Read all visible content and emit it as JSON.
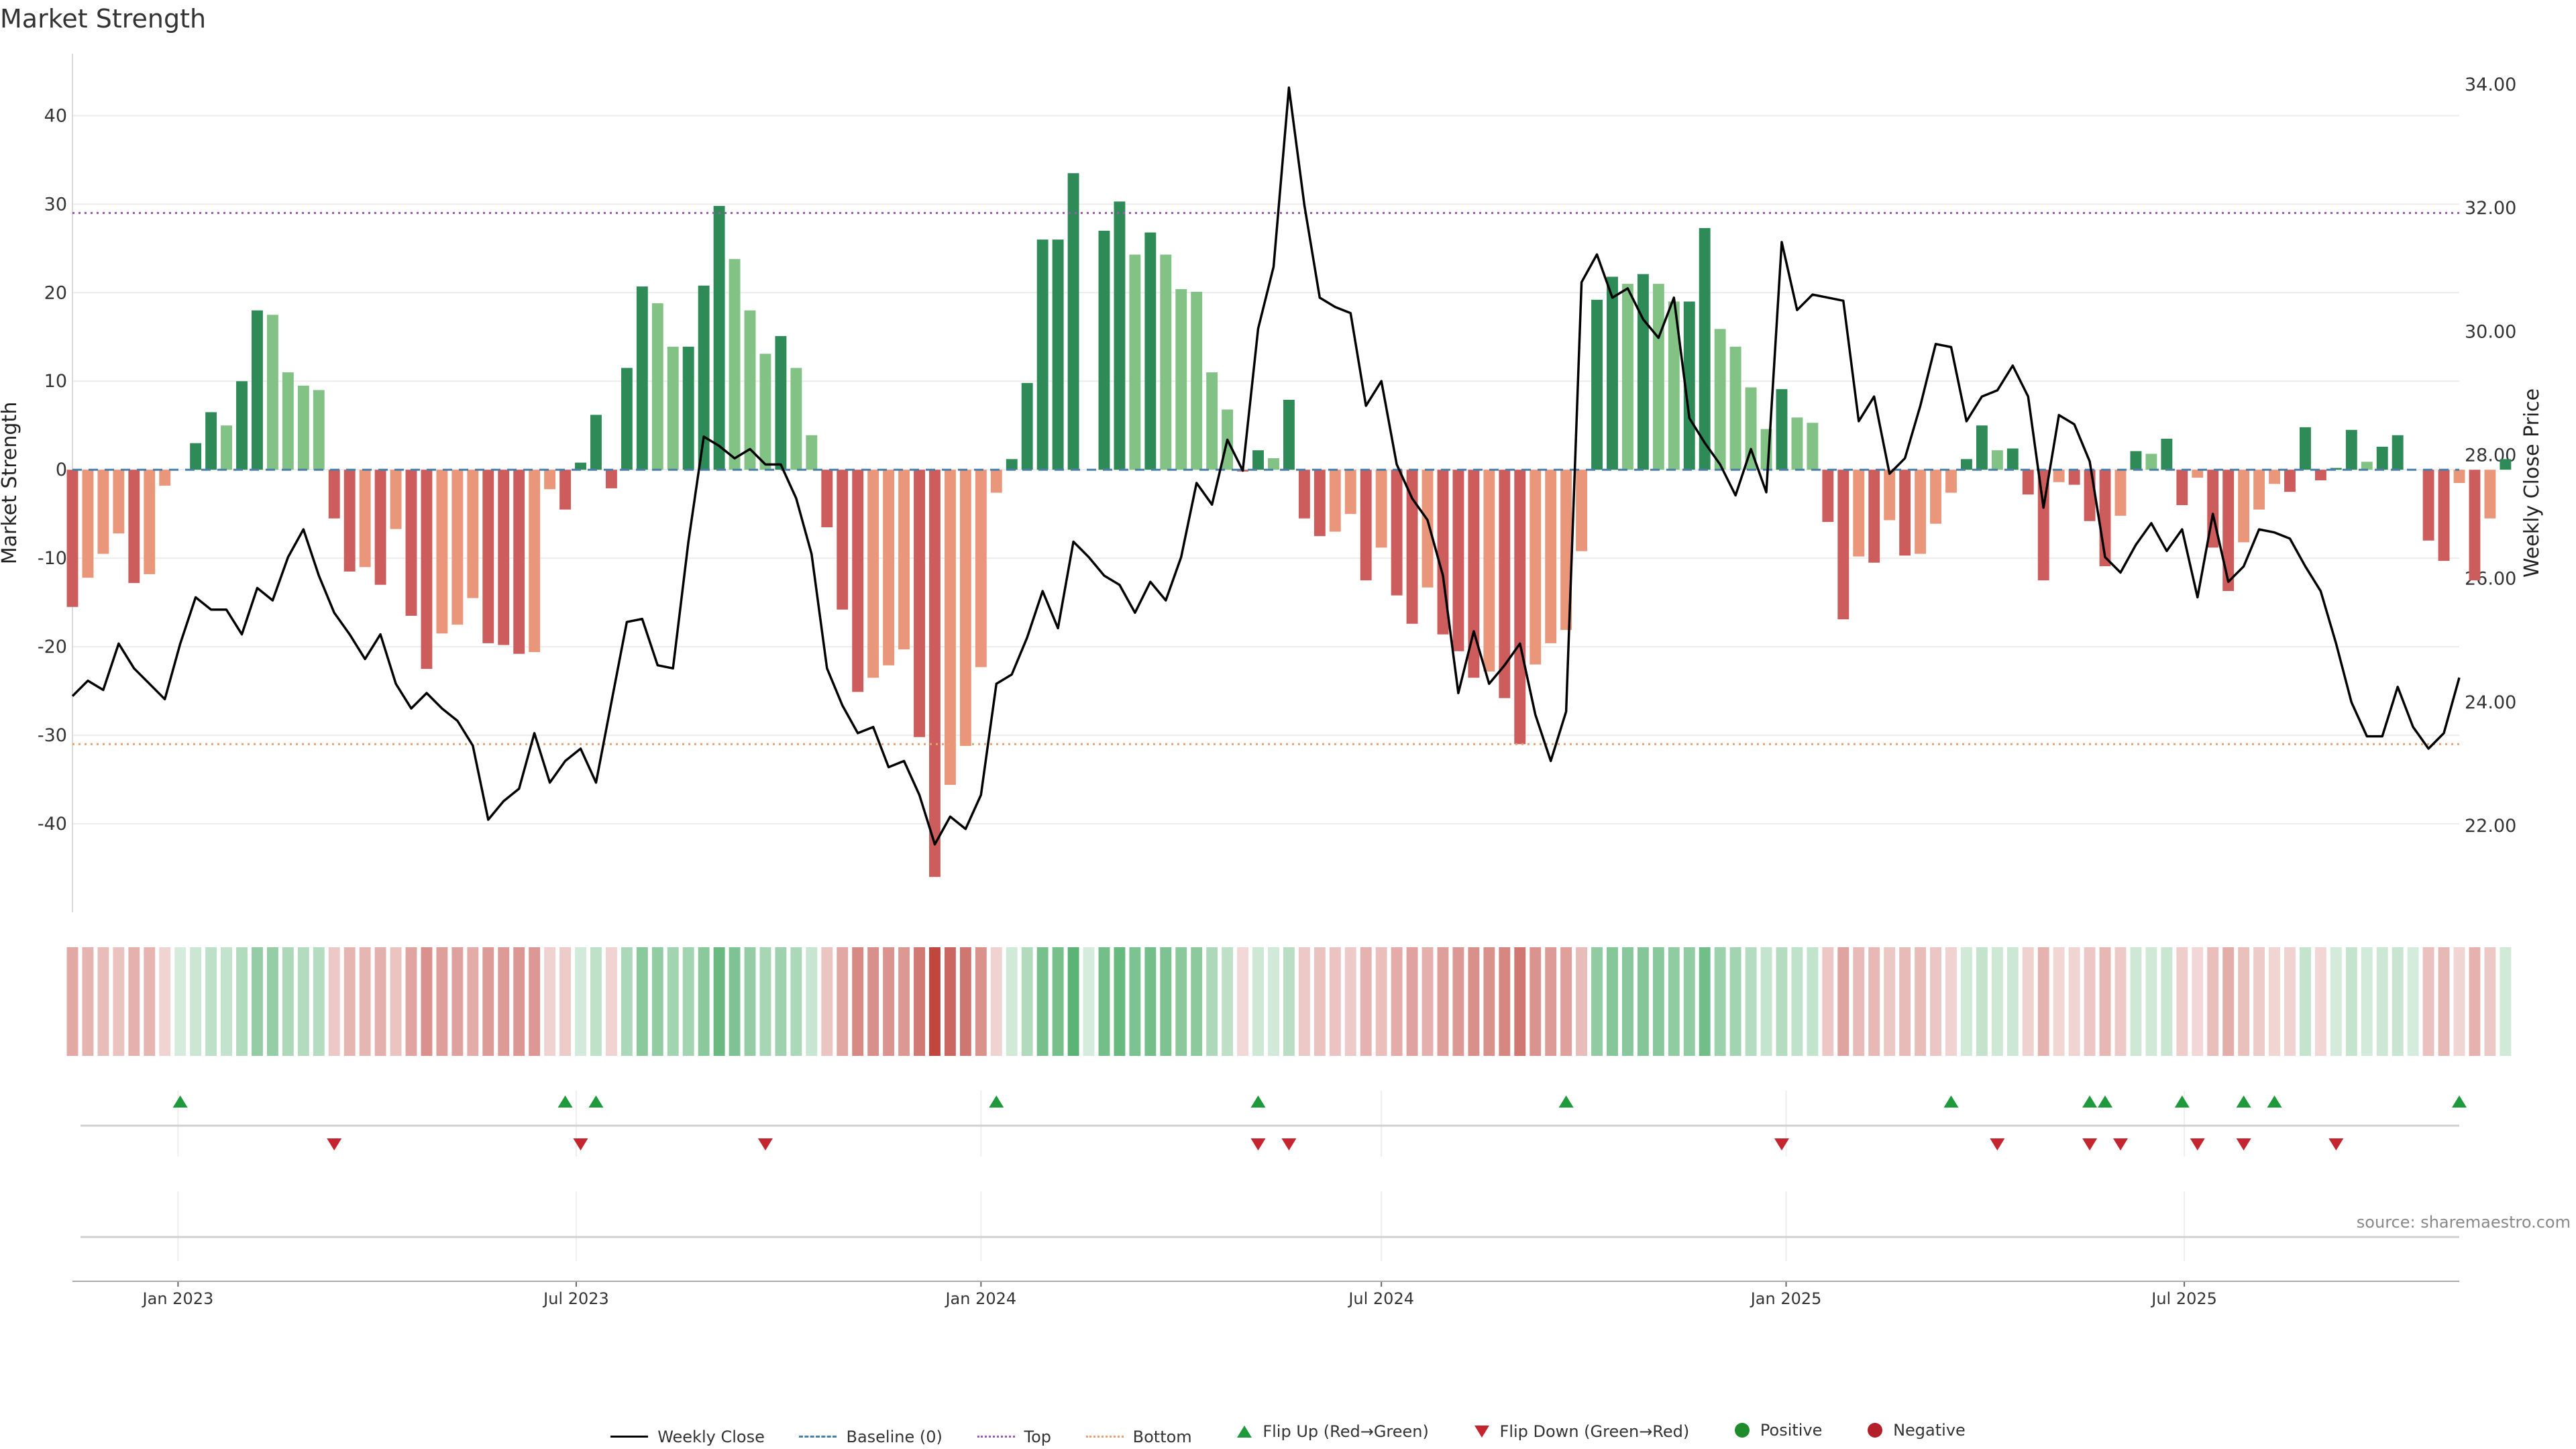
{
  "title": "Market Strength",
  "source_label": "source: sharemaestro.com",
  "legend": {
    "close": "Weekly Close",
    "baseline": "Baseline (0)",
    "top": "Top",
    "bottom": "Bottom",
    "flip_up": "Flip Up (Red→Green)",
    "flip_down": "Flip Down (Green→Red)",
    "positive": "Positive",
    "negative": "Negative"
  },
  "colors": {
    "green_dark": "#2e8b57",
    "green_light": "#82c284",
    "red_dark": "#cd5c5c",
    "red_light": "#e9967a",
    "close_line": "#000000",
    "baseline": "#4a7fa8",
    "top_line": "#9b59b6",
    "bottom_line": "#e8a070",
    "flip_up": "#1e9a3c",
    "flip_down": "#c4252f",
    "positive": "#1e8c2a",
    "negative": "#b3202a"
  },
  "chart_data": {
    "type": "bar",
    "title": "Market Strength",
    "ylabel_left": "Market Strength",
    "ylabel_right": "Weekly Close Price",
    "ylim_left": [
      -50,
      47
    ],
    "ylim_right": [
      20.6,
      34.5
    ],
    "yticks_left": [
      40,
      30,
      20,
      10,
      0,
      -10,
      -20,
      -30,
      -40
    ],
    "yticks_right": [
      34.0,
      32.0,
      30.0,
      28.0,
      26.0,
      24.0,
      22.0
    ],
    "top_level": 29,
    "bottom_level": -31,
    "baseline": 0,
    "x_range": [
      "2022-11-14",
      "2025-11-03"
    ],
    "x_ticks": [
      {
        "date": "2023-01-01",
        "label": "Jan 2023"
      },
      {
        "date": "2023-07-01",
        "label": "Jul 2023"
      },
      {
        "date": "2024-01-01",
        "label": "Jan 2024"
      },
      {
        "date": "2024-07-01",
        "label": "Jul 2024"
      },
      {
        "date": "2025-01-01",
        "label": "Jan 2025"
      },
      {
        "date": "2025-07-01",
        "label": "Jul 2025"
      }
    ],
    "start_date": "2022-11-14",
    "series_strength": [
      -15.5,
      -12.2,
      -9.5,
      -7.2,
      -12.8,
      -11.8,
      -1.8,
      0,
      3,
      6.5,
      5,
      10,
      18,
      17.5,
      11,
      9.5,
      9,
      -5.5,
      -11.5,
      -11,
      -13,
      -6.7,
      -16.5,
      -22.5,
      -18.5,
      -17.5,
      -14.5,
      -19.6,
      -19.8,
      -20.8,
      -20.6,
      -2.2,
      -4.5,
      0.8,
      6.2,
      -2.1,
      11.5,
      20.7,
      18.8,
      13.9,
      13.9,
      20.8,
      29.8,
      23.8,
      18,
      13.1,
      15.1,
      11.5,
      3.9,
      -6.5,
      -15.8,
      -25.1,
      -23.5,
      -22.1,
      -20.3,
      -30.2,
      -46,
      -35.6,
      -31.2,
      -22.3,
      -2.6,
      1.2,
      9.8,
      26,
      26,
      33.5,
      0,
      27,
      30.3,
      24.3,
      26.8,
      24.3,
      20.4,
      20.1,
      11,
      6.8,
      -0.2,
      2.2,
      1.3,
      7.9,
      -5.5,
      -7.5,
      -7,
      -5,
      -12.5,
      -8.8,
      -14.2,
      -17.4,
      -13.3,
      -18.6,
      -20.5,
      -23.5,
      -22.8,
      -25.8,
      -31,
      -22,
      -19.6,
      -18.1,
      -9.2,
      19.2,
      21.8,
      21,
      22.1,
      21,
      19,
      19,
      27.3,
      15.9,
      13.9,
      9.3,
      4.6,
      9.1,
      5.9,
      5.3,
      -5.9,
      -16.9,
      -9.8,
      -10.5,
      -5.7,
      -9.7,
      -9.5,
      -6.1,
      -2.6,
      1.2,
      5,
      2.2,
      2.4,
      -2.8,
      -12.5,
      -1.4,
      -1.7,
      -5.8,
      -10.9,
      -5.2,
      2.1,
      1.8,
      3.5,
      -4,
      -0.9,
      -8.8,
      -13.7,
      -8.2,
      -4.5,
      -1.6,
      -2.5,
      4.8,
      -1.2,
      0.2,
      4.5,
      0.9,
      2.6,
      3.9,
      0,
      -8,
      -10.3,
      -1.5,
      -12.5,
      -5.5,
      1.2
    ],
    "series_close": [
      24.1,
      24.35,
      24.2,
      24.95,
      24.55,
      24.3,
      24.05,
      24.95,
      25.7,
      25.5,
      25.5,
      25.1,
      25.85,
      25.65,
      26.35,
      26.8,
      26.05,
      25.45,
      25.1,
      24.7,
      25.1,
      24.3,
      23.9,
      24.15,
      23.9,
      23.7,
      23.3,
      22.1,
      22.4,
      22.6,
      23.5,
      22.7,
      23.05,
      23.25,
      22.7,
      24,
      25.3,
      25.35,
      24.6,
      24.55,
      26.6,
      28.3,
      28.15,
      27.95,
      28.1,
      27.85,
      27.85,
      27.3,
      26.4,
      24.55,
      23.95,
      23.5,
      23.6,
      22.95,
      23.05,
      22.5,
      21.7,
      22.15,
      21.95,
      22.5,
      24.3,
      24.45,
      25.05,
      25.8,
      25.2,
      26.6,
      26.35,
      26.05,
      25.9,
      25.45,
      25.95,
      25.65,
      26.35,
      27.55,
      27.2,
      28.25,
      27.75,
      30.05,
      31.05,
      33.95,
      32.05,
      30.55,
      30.4,
      30.3,
      28.8,
      29.2,
      27.85,
      27.3,
      26.95,
      26.05,
      24.15,
      25.15,
      24.3,
      24.6,
      24.95,
      23.8,
      23.05,
      23.85,
      30.8,
      31.25,
      30.55,
      30.7,
      30.2,
      29.9,
      30.55,
      28.6,
      28.2,
      27.85,
      27.35,
      28.1,
      27.4,
      31.45,
      30.35,
      30.6,
      30.55,
      30.5,
      28.55,
      28.95,
      27.7,
      27.95,
      28.8,
      29.8,
      29.75,
      28.55,
      28.95,
      29.05,
      29.45,
      28.95,
      27.15,
      28.65,
      28.5,
      27.9,
      26.35,
      26.1,
      26.55,
      26.9,
      26.45,
      26.8,
      25.7,
      27.05,
      25.95,
      26.2,
      26.8,
      26.75,
      26.65,
      26.2,
      25.8,
      24.95,
      24,
      23.45,
      23.45,
      24.25,
      23.6,
      23.25,
      23.5,
      24.4
    ],
    "flip_up_dates": [
      "2023-01-02",
      "2023-06-26",
      "2023-07-10",
      "2024-01-08",
      "2024-05-06",
      "2024-09-23",
      "2025-03-17",
      "2025-05-19",
      "2025-05-26",
      "2025-06-30",
      "2025-07-28",
      "2025-08-11",
      "2025-11-03"
    ],
    "flip_down_dates": [
      "2023-03-13",
      "2023-07-03",
      "2023-09-25",
      "2024-05-06",
      "2024-05-20",
      "2024-12-30",
      "2025-04-07",
      "2025-05-19",
      "2025-06-02",
      "2025-07-07",
      "2025-07-28",
      "2025-09-08"
    ]
  }
}
